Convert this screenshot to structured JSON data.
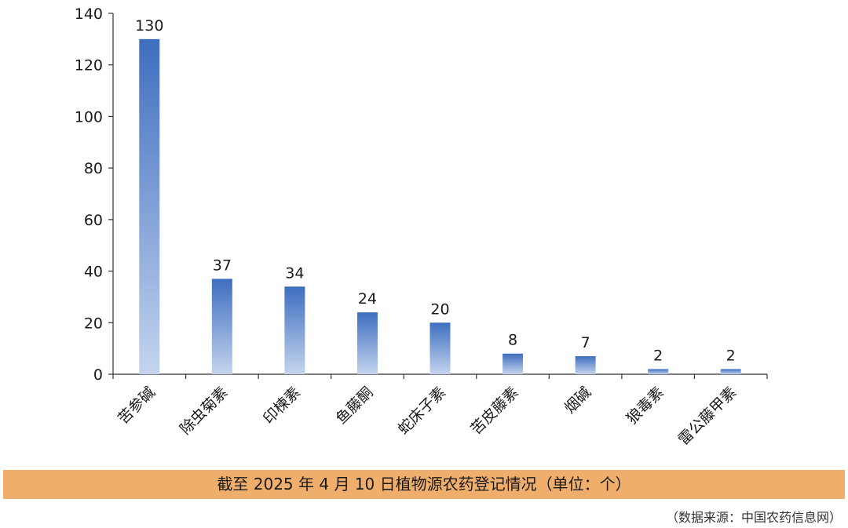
{
  "chart_data": {
    "type": "bar",
    "categories": [
      "苦参碱",
      "除虫菊素",
      "印楝素",
      "鱼藤酮",
      "蛇床子素",
      "苦皮藤素",
      "烟碱",
      "狼毒素",
      "雷公藤甲素"
    ],
    "values": [
      130,
      37,
      34,
      24,
      20,
      8,
      7,
      2,
      2
    ],
    "ylim": [
      0,
      140
    ],
    "yticks": [
      0,
      20,
      40,
      60,
      80,
      100,
      120,
      140
    ],
    "grid": false,
    "bar_gradient": [
      "#3E6EBF",
      "#C4D4EE"
    ],
    "data_labels": true
  },
  "caption": "截至 2025 年 4 月 10 日植物源农药登记情况（单位：个）",
  "source": "（数据来源：中国农药信息网）",
  "colors": {
    "caption_background": "#F0AE6C",
    "axis": "#333333"
  }
}
